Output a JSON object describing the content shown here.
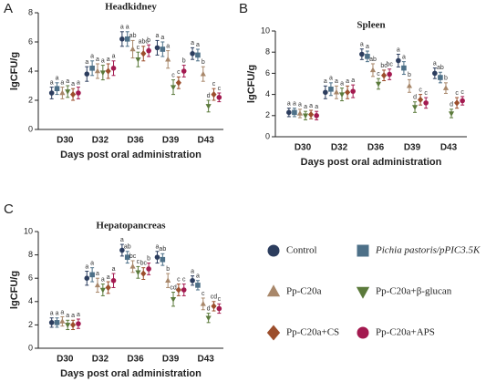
{
  "legend": [
    {
      "name": "Control",
      "color": "#2c3d5e",
      "marker": "circle"
    },
    {
      "name": "Pichia pastoris/pPIC3.5K",
      "color": "#4d7088",
      "marker": "square"
    },
    {
      "name": "Pp-C20a",
      "color": "#a8876a",
      "marker": "triangle"
    },
    {
      "name": "Pp-C20a+β-glucan",
      "color": "#5b7a3b",
      "marker": "triangle-down"
    },
    {
      "name": "Pp-C20a+CS",
      "color": "#9c4e2c",
      "marker": "diamond"
    },
    {
      "name": "Pp-C20a+APS",
      "color": "#a3194f",
      "marker": "circle"
    }
  ],
  "chart_data": [
    {
      "type": "dot",
      "panel_label": "A",
      "title": "Headkidney",
      "y_label": "lgCFU/g",
      "x_label": "Days post oral administration",
      "categories": [
        "D30",
        "D32",
        "D36",
        "D39",
        "D43"
      ],
      "ylim": [
        0,
        8
      ],
      "yticks": [
        0,
        2,
        4,
        6,
        8
      ],
      "series": [
        {
          "values": [
            2.5,
            3.8,
            6.2,
            5.6,
            5.2
          ],
          "errors": [
            0.4,
            0.5,
            0.5,
            0.5,
            0.4
          ],
          "letters": [
            "a",
            "a",
            "a",
            "a",
            "a"
          ]
        },
        {
          "values": [
            2.8,
            4.2,
            6.2,
            5.5,
            5.1
          ],
          "errors": [
            0.4,
            0.5,
            0.5,
            0.5,
            0.4
          ],
          "letters": [
            "a",
            "a",
            "a",
            "a",
            "a"
          ]
        },
        {
          "values": [
            2.5,
            4.0,
            5.5,
            4.8,
            3.8
          ],
          "errors": [
            0.4,
            0.5,
            0.6,
            0.6,
            0.5
          ],
          "letters": [
            "a",
            "a",
            "ab",
            "a",
            "b"
          ]
        },
        {
          "values": [
            2.6,
            3.9,
            4.8,
            2.9,
            1.6
          ],
          "errors": [
            0.4,
            0.5,
            0.5,
            0.5,
            0.4
          ],
          "letters": [
            "a",
            "a",
            "c",
            "c",
            "d"
          ]
        },
        {
          "values": [
            2.4,
            4.0,
            5.2,
            3.2,
            2.4
          ],
          "errors": [
            0.4,
            0.5,
            0.5,
            0.4,
            0.4
          ],
          "letters": [
            "a",
            "a",
            "abc",
            "c",
            "c"
          ]
        },
        {
          "values": [
            2.5,
            4.2,
            5.4,
            4.0,
            2.2
          ],
          "errors": [
            0.4,
            0.5,
            0.4,
            0.4,
            0.3
          ],
          "letters": [
            "a",
            "a",
            "b",
            "b",
            "c"
          ]
        }
      ]
    },
    {
      "type": "dot",
      "panel_label": "B",
      "title": "Spleen",
      "y_label": "lgCFU/g",
      "x_label": "Days post oral administration",
      "categories": [
        "D30",
        "D32",
        "D36",
        "D39",
        "D43"
      ],
      "ylim": [
        0,
        10
      ],
      "yticks": [
        0,
        2,
        4,
        6,
        8,
        10
      ],
      "series": [
        {
          "values": [
            2.3,
            4.2,
            7.8,
            7.2,
            6.0
          ],
          "errors": [
            0.4,
            0.6,
            0.5,
            0.6,
            0.5
          ],
          "letters": [
            "a",
            "a",
            "a",
            "a",
            "a"
          ]
        },
        {
          "values": [
            2.3,
            4.5,
            7.6,
            6.5,
            5.6
          ],
          "errors": [
            0.4,
            0.6,
            0.5,
            0.6,
            0.5
          ],
          "letters": [
            "a",
            "a",
            "a",
            "a",
            "ab"
          ]
        },
        {
          "values": [
            2.2,
            4.2,
            6.3,
            4.8,
            4.6
          ],
          "errors": [
            0.4,
            0.6,
            0.6,
            0.6,
            0.5
          ],
          "letters": [
            "a",
            "a",
            "ab",
            "b",
            "b"
          ]
        },
        {
          "values": [
            2.0,
            4.0,
            5.0,
            2.8,
            2.2
          ],
          "errors": [
            0.4,
            0.6,
            0.5,
            0.5,
            0.4
          ],
          "letters": [
            "a",
            "a",
            "c",
            "d",
            "d"
          ]
        },
        {
          "values": [
            2.1,
            4.2,
            5.8,
            3.5,
            3.2
          ],
          "errors": [
            0.4,
            0.6,
            0.5,
            0.5,
            0.5
          ],
          "letters": [
            "a",
            "a",
            "bc",
            "c",
            "c"
          ]
        },
        {
          "values": [
            2.0,
            4.3,
            5.9,
            3.2,
            3.4
          ],
          "errors": [
            0.4,
            0.6,
            0.5,
            0.5,
            0.4
          ],
          "letters": [
            "a",
            "a",
            "bc",
            "c",
            "c"
          ]
        }
      ]
    },
    {
      "type": "dot",
      "panel_label": "C",
      "title": "Hepatopancreas",
      "y_label": "lgCFU/g",
      "x_label": "Days post oral administration",
      "categories": [
        "D30",
        "D32",
        "D36",
        "D39",
        "D43"
      ],
      "ylim": [
        0,
        10
      ],
      "yticks": [
        0,
        2,
        4,
        6,
        8,
        10
      ],
      "series": [
        {
          "values": [
            2.2,
            6.0,
            8.4,
            7.8,
            5.8
          ],
          "errors": [
            0.4,
            0.6,
            0.5,
            0.5,
            0.4
          ],
          "letters": [
            "a",
            "a",
            "a",
            "a",
            "a"
          ]
        },
        {
          "values": [
            2.2,
            6.3,
            7.8,
            7.6,
            5.4
          ],
          "errors": [
            0.4,
            0.6,
            0.5,
            0.5,
            0.4
          ],
          "letters": [
            "a",
            "a",
            "ab",
            "ab",
            "a"
          ]
        },
        {
          "values": [
            2.3,
            5.4,
            7.0,
            5.8,
            3.8
          ],
          "errors": [
            0.4,
            0.6,
            0.5,
            0.6,
            0.5
          ],
          "letters": [
            "a",
            "a",
            "bc",
            "b",
            "c"
          ]
        },
        {
          "values": [
            2.0,
            5.0,
            6.5,
            4.2,
            2.6
          ],
          "errors": [
            0.4,
            0.5,
            0.5,
            0.6,
            0.4
          ],
          "letters": [
            "a",
            "a",
            "c",
            "cd",
            "d"
          ]
        },
        {
          "values": [
            2.0,
            5.2,
            6.4,
            5.0,
            3.6
          ],
          "errors": [
            0.4,
            0.5,
            0.5,
            0.5,
            0.4
          ],
          "letters": [
            "a",
            "a",
            "bc",
            "c",
            "cd"
          ]
        },
        {
          "values": [
            2.1,
            5.8,
            6.8,
            5.0,
            3.4
          ],
          "errors": [
            0.4,
            0.6,
            0.5,
            0.5,
            0.4
          ],
          "letters": [
            "a",
            "a",
            "b",
            "c",
            "c"
          ]
        }
      ]
    }
  ]
}
